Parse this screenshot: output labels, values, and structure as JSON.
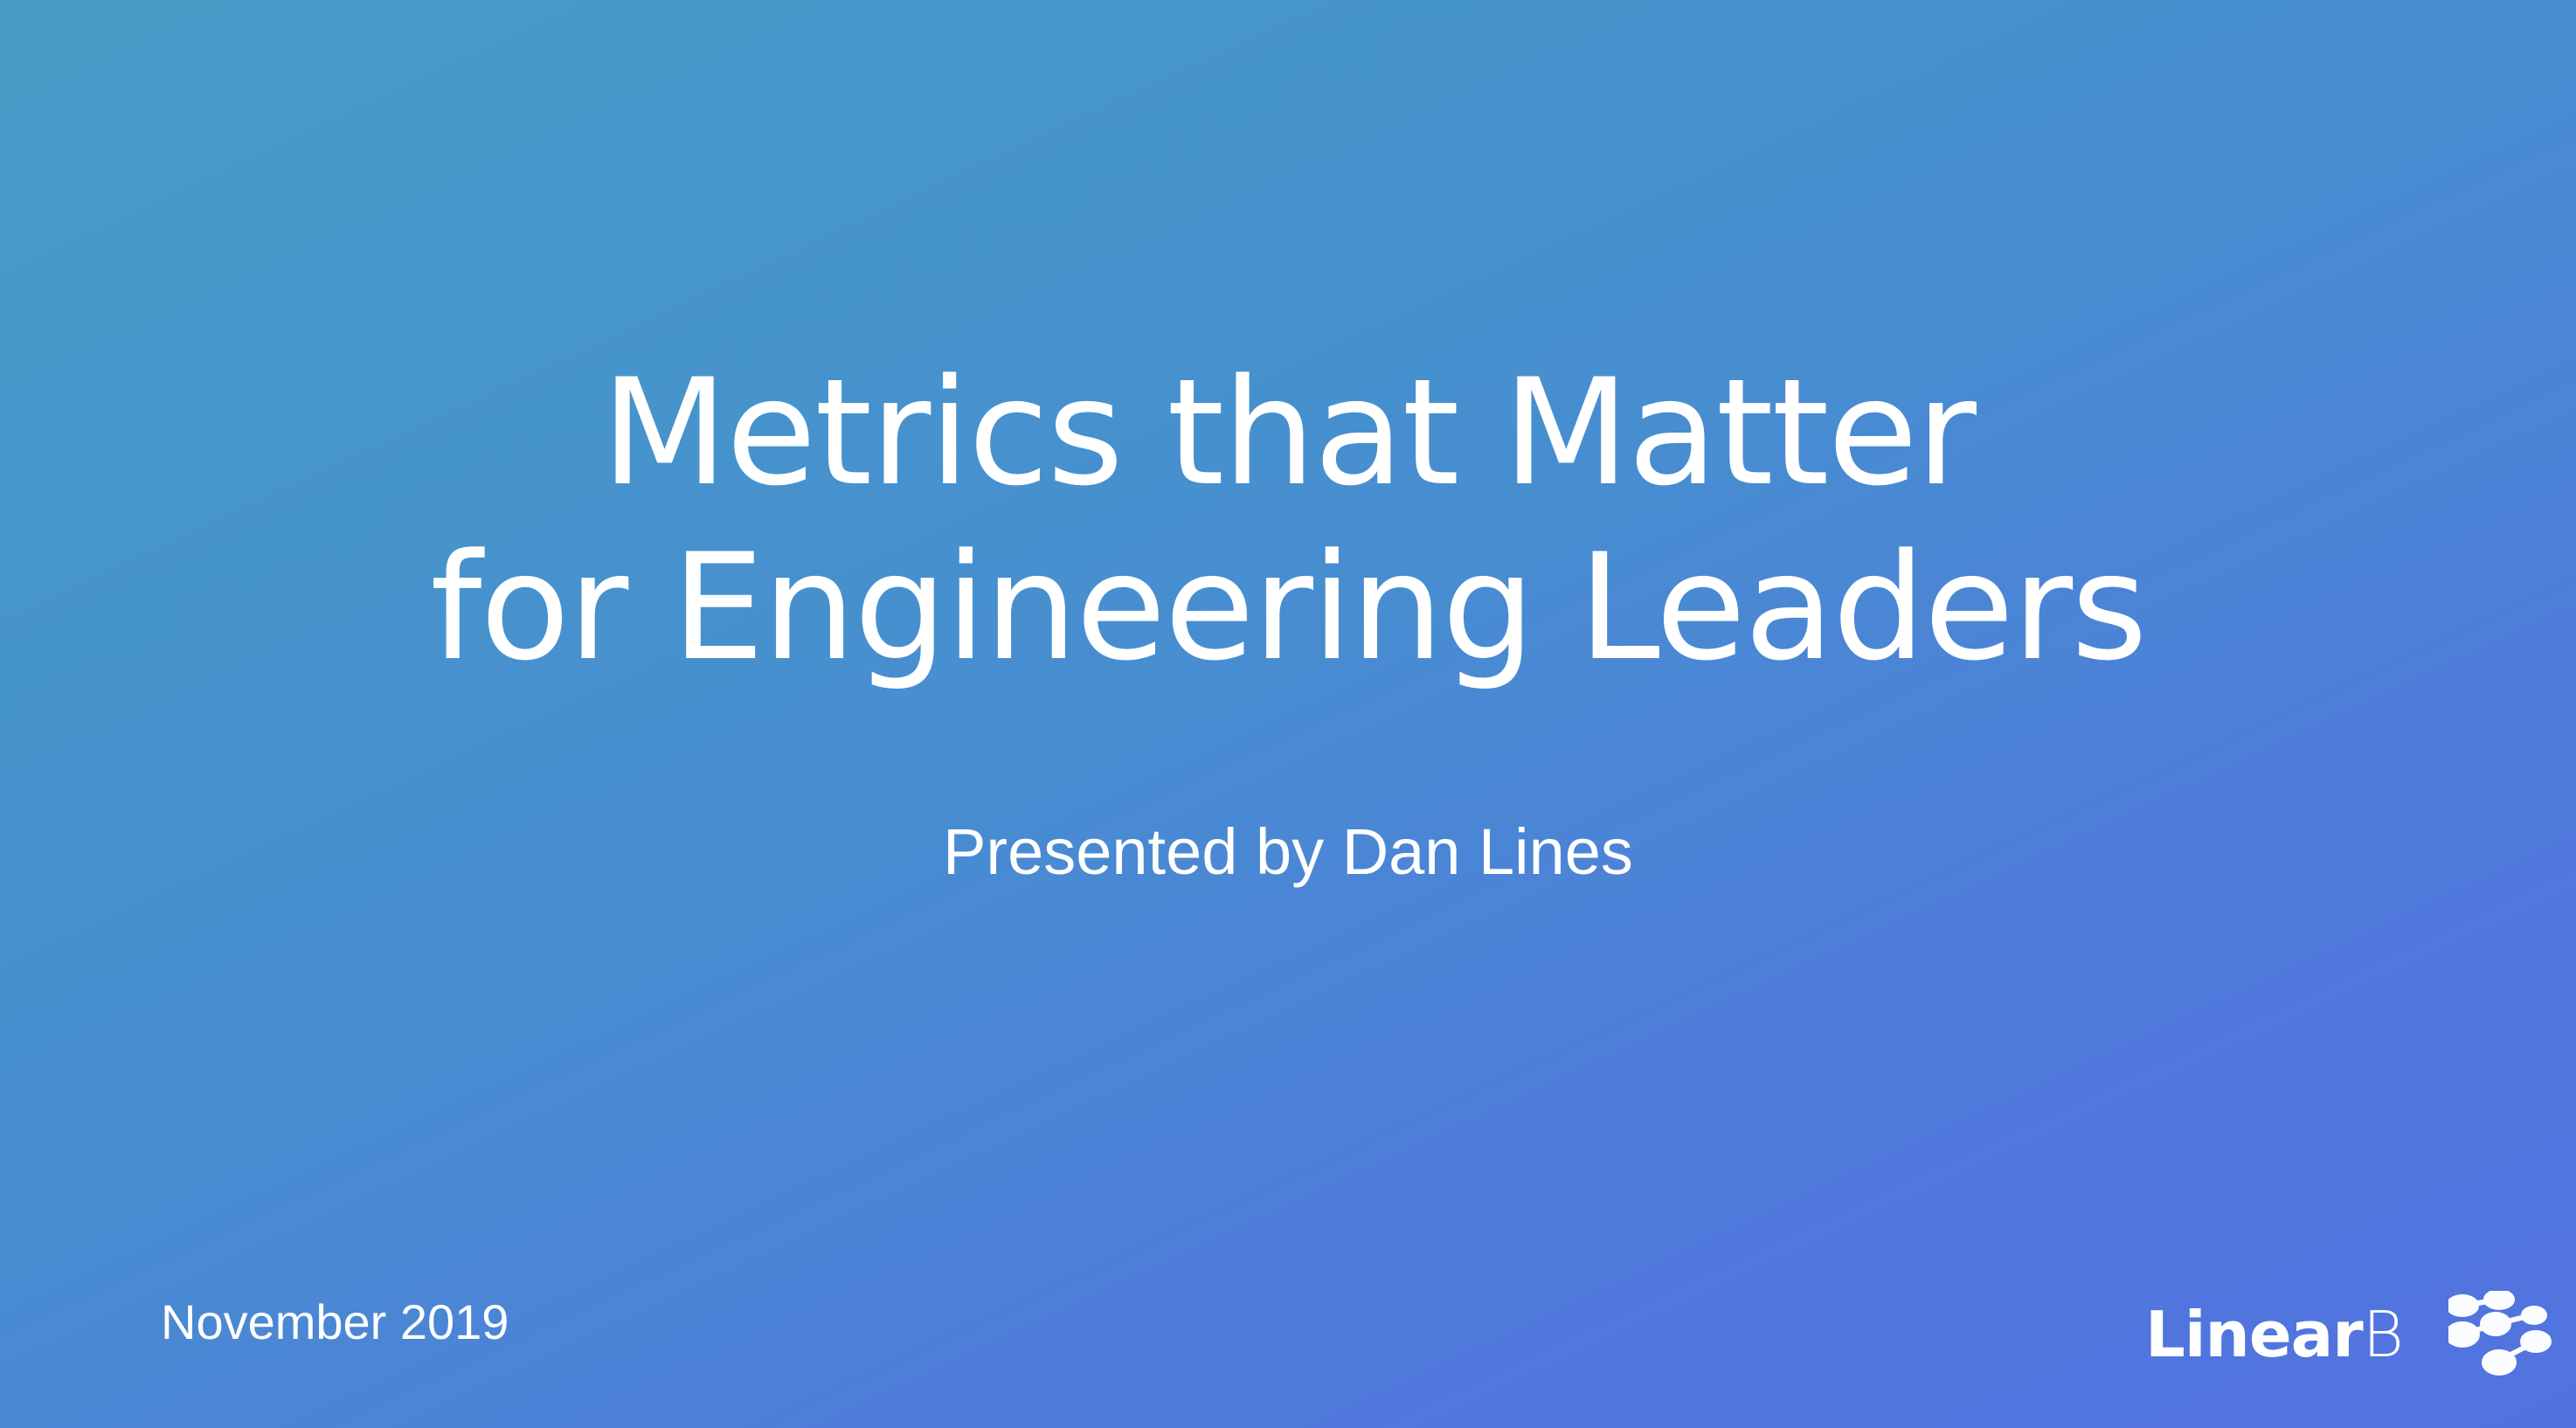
{
  "slide": {
    "title_line1": "Metrics that Matter",
    "title_line2": "for Engineering Leaders",
    "subtitle": "Presented by Dan Lines",
    "date": "November 2019"
  },
  "logo": {
    "text_bold": "Linear",
    "text_light": "B",
    "icon": "molecule-nodes-icon"
  },
  "colors": {
    "gradient_start": "#469cc6",
    "gradient_end": "#5173de",
    "text": "#ffffff"
  }
}
